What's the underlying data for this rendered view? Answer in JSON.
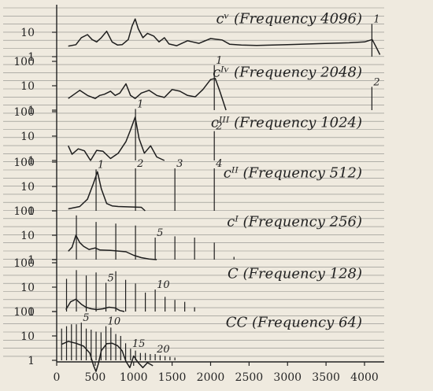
{
  "chart_data": {
    "type": "line",
    "x_axis": {
      "min": 0,
      "max": 4250,
      "ticks": [
        0,
        500,
        1000,
        1500,
        2000,
        2500,
        3000,
        3500,
        4000
      ]
    },
    "y_axis_scale": "log",
    "panels": [
      {
        "id": "cV",
        "title": "cᵛ (Frequency 4096)",
        "tick_labels": [
          "10",
          "1"
        ],
        "partials": [
          {
            "x": 4096,
            "label": "1",
            "amp": 22
          }
        ],
        "curve": [
          [
            150,
            2.7
          ],
          [
            250,
            3.1
          ],
          [
            320,
            6
          ],
          [
            400,
            8
          ],
          [
            460,
            5
          ],
          [
            520,
            4
          ],
          [
            580,
            6
          ],
          [
            650,
            11
          ],
          [
            720,
            4
          ],
          [
            790,
            3
          ],
          [
            850,
            3.1
          ],
          [
            930,
            5
          ],
          [
            980,
            18
          ],
          [
            1020,
            35
          ],
          [
            1060,
            14
          ],
          [
            1120,
            6
          ],
          [
            1180,
            9
          ],
          [
            1260,
            7
          ],
          [
            1330,
            4
          ],
          [
            1400,
            6
          ],
          [
            1460,
            3.3
          ],
          [
            1560,
            2.8
          ],
          [
            1700,
            4.5
          ],
          [
            1850,
            3.5
          ],
          [
            2000,
            5.5
          ],
          [
            2150,
            4.8
          ],
          [
            2250,
            3.2
          ],
          [
            2400,
            3
          ],
          [
            2600,
            2.9
          ],
          [
            3000,
            3.1
          ],
          [
            3400,
            3.4
          ],
          [
            3800,
            3.7
          ],
          [
            4000,
            4
          ],
          [
            4100,
            5
          ],
          [
            4150,
            2.5
          ],
          [
            4200,
            1.2
          ]
        ]
      },
      {
        "id": "cIV",
        "title": "cᴵᵛ (Frequency 2048)",
        "tick_labels": [
          "100",
          "10",
          "1"
        ],
        "partials": [
          {
            "x": 2048,
            "label": "1",
            "amp": 70
          },
          {
            "x": 4096,
            "label": "2",
            "amp": 9
          }
        ],
        "curve": [
          [
            150,
            3
          ],
          [
            300,
            6.5
          ],
          [
            400,
            4
          ],
          [
            500,
            3
          ],
          [
            560,
            4
          ],
          [
            620,
            4.5
          ],
          [
            700,
            6
          ],
          [
            760,
            4
          ],
          [
            820,
            5
          ],
          [
            900,
            12
          ],
          [
            960,
            4
          ],
          [
            1020,
            3
          ],
          [
            1100,
            5
          ],
          [
            1200,
            6.5
          ],
          [
            1300,
            4
          ],
          [
            1400,
            3.3
          ],
          [
            1500,
            7
          ],
          [
            1600,
            6
          ],
          [
            1700,
            4
          ],
          [
            1800,
            3.5
          ],
          [
            1900,
            7
          ],
          [
            2000,
            18
          ],
          [
            2060,
            20
          ],
          [
            2120,
            6
          ],
          [
            2200,
            1
          ]
        ]
      },
      {
        "id": "cIII",
        "title": "cᴵᴵᴵ (Frequency 1024)",
        "tick_labels": [
          "100",
          "10",
          "1"
        ],
        "partials": [
          {
            "x": 1024,
            "label": "1",
            "amp": 130
          },
          {
            "x": 2048,
            "label": "2",
            "amp": 16
          }
        ],
        "curve": [
          [
            150,
            4
          ],
          [
            200,
            1.8
          ],
          [
            280,
            3
          ],
          [
            360,
            2.5
          ],
          [
            440,
            1
          ],
          [
            520,
            2.6
          ],
          [
            600,
            2.4
          ],
          [
            700,
            1.2
          ],
          [
            800,
            2
          ],
          [
            900,
            6
          ],
          [
            960,
            18
          ],
          [
            1020,
            60
          ],
          [
            1070,
            8
          ],
          [
            1140,
            2
          ],
          [
            1220,
            4
          ],
          [
            1300,
            1.4
          ],
          [
            1400,
            1
          ]
        ]
      },
      {
        "id": "cII",
        "title": "cᴵᴵ (Frequency 512)",
        "tick_labels": [
          "100",
          "10",
          "1"
        ],
        "partials": [
          {
            "x": 512,
            "label": "1",
            "amp": 50
          },
          {
            "x": 1024,
            "label": "2",
            "amp": 55
          },
          {
            "x": 1536,
            "label": "3",
            "amp": 55
          },
          {
            "x": 2048,
            "label": "4",
            "amp": 55
          }
        ],
        "curve": [
          [
            150,
            1.2
          ],
          [
            300,
            1.5
          ],
          [
            400,
            3
          ],
          [
            480,
            14
          ],
          [
            530,
            40
          ],
          [
            580,
            8
          ],
          [
            650,
            2
          ],
          [
            720,
            1.6
          ],
          [
            800,
            1.5
          ],
          [
            1100,
            1.4
          ],
          [
            1150,
            1
          ]
        ]
      },
      {
        "id": "cI",
        "title": "cᴵ (Frequency 256)",
        "tick_labels": [
          "100",
          "10",
          "1"
        ],
        "partials": [
          {
            "x": 256,
            "label": "",
            "amp": 65
          },
          {
            "x": 512,
            "label": "",
            "amp": 35
          },
          {
            "x": 768,
            "label": "",
            "amp": 30
          },
          {
            "x": 1024,
            "label": "",
            "amp": 25
          },
          {
            "x": 1280,
            "label": "5",
            "amp": 8
          },
          {
            "x": 1536,
            "label": "",
            "amp": 9
          },
          {
            "x": 1792,
            "label": "",
            "amp": 8
          },
          {
            "x": 2048,
            "label": "",
            "amp": 5
          },
          {
            "x": 2304,
            "label": "",
            "amp": 1.3
          }
        ],
        "curve": [
          [
            150,
            2.2
          ],
          [
            200,
            3.2
          ],
          [
            250,
            10
          ],
          [
            300,
            5
          ],
          [
            350,
            3.5
          ],
          [
            420,
            2.6
          ],
          [
            500,
            3
          ],
          [
            560,
            2.5
          ],
          [
            700,
            2.4
          ],
          [
            900,
            2.1
          ],
          [
            1000,
            1.5
          ],
          [
            1100,
            1.2
          ],
          [
            1200,
            1.05
          ],
          [
            1300,
            1
          ]
        ]
      },
      {
        "id": "C",
        "title": "C (Frequency 128)",
        "tick_labels": [
          "100",
          "10",
          "1"
        ],
        "partials": [
          {
            "x": 128,
            "label": "",
            "amp": 22
          },
          {
            "x": 256,
            "label": "",
            "amp": 50
          },
          {
            "x": 384,
            "label": "",
            "amp": 30
          },
          {
            "x": 512,
            "label": "",
            "amp": 40
          },
          {
            "x": 640,
            "label": "5",
            "amp": 15
          },
          {
            "x": 768,
            "label": "",
            "amp": 45
          },
          {
            "x": 896,
            "label": "",
            "amp": 20
          },
          {
            "x": 1024,
            "label": "",
            "amp": 14
          },
          {
            "x": 1152,
            "label": "",
            "amp": 6
          },
          {
            "x": 1280,
            "label": "10",
            "amp": 8
          },
          {
            "x": 1408,
            "label": "",
            "amp": 4
          },
          {
            "x": 1536,
            "label": "",
            "amp": 3
          },
          {
            "x": 1664,
            "label": "",
            "amp": 2.5
          },
          {
            "x": 1792,
            "label": "",
            "amp": 1.5
          }
        ],
        "curve": [
          [
            120,
            1.2
          ],
          [
            180,
            2.5
          ],
          [
            250,
            3.2
          ],
          [
            320,
            2
          ],
          [
            380,
            1.5
          ],
          [
            450,
            1.3
          ],
          [
            520,
            1.2
          ],
          [
            600,
            1.3
          ],
          [
            680,
            1.5
          ],
          [
            760,
            1.4
          ],
          [
            820,
            1.1
          ],
          [
            880,
            1
          ]
        ]
      },
      {
        "id": "CC",
        "title": "CC (Frequency 64)",
        "tick_labels": [
          "100",
          "10",
          "1"
        ],
        "partials": [
          {
            "x": 64,
            "label": "",
            "amp": 20
          },
          {
            "x": 128,
            "label": "",
            "amp": 25
          },
          {
            "x": 192,
            "label": "",
            "amp": 30
          },
          {
            "x": 256,
            "label": "",
            "amp": 30
          },
          {
            "x": 320,
            "label": "5",
            "amp": 35
          },
          {
            "x": 384,
            "label": "",
            "amp": 20
          },
          {
            "x": 448,
            "label": "",
            "amp": 18
          },
          {
            "x": 512,
            "label": "",
            "amp": 15
          },
          {
            "x": 576,
            "label": "",
            "amp": 14
          },
          {
            "x": 640,
            "label": "10",
            "amp": 25
          },
          {
            "x": 704,
            "label": "",
            "amp": 22
          },
          {
            "x": 768,
            "label": "",
            "amp": 12
          },
          {
            "x": 832,
            "label": "",
            "amp": 10
          },
          {
            "x": 896,
            "label": "",
            "amp": 5
          },
          {
            "x": 960,
            "label": "15",
            "amp": 3
          },
          {
            "x": 1024,
            "label": "",
            "amp": 2.5
          },
          {
            "x": 1088,
            "label": "",
            "amp": 2
          },
          {
            "x": 1152,
            "label": "",
            "amp": 2
          },
          {
            "x": 1216,
            "label": "",
            "amp": 1.8
          },
          {
            "x": 1280,
            "label": "20",
            "amp": 1.8
          },
          {
            "x": 1344,
            "label": "",
            "amp": 1.6
          },
          {
            "x": 1408,
            "label": "",
            "amp": 1.5
          },
          {
            "x": 1472,
            "label": "",
            "amp": 1.4
          },
          {
            "x": 1536,
            "label": "",
            "amp": 1.3
          }
        ],
        "curve": [
          [
            60,
            4.5
          ],
          [
            150,
            6
          ],
          [
            250,
            5
          ],
          [
            350,
            3.8
          ],
          [
            430,
            2
          ],
          [
            480,
            0.6
          ],
          [
            510,
            0.35
          ],
          [
            540,
            0.7
          ],
          [
            580,
            2.5
          ],
          [
            650,
            4.8
          ],
          [
            720,
            5
          ],
          [
            790,
            4
          ],
          [
            850,
            2.5
          ],
          [
            900,
            0.9
          ],
          [
            950,
            0.5
          ],
          [
            1000,
            1.5
          ],
          [
            1060,
            0.8
          ],
          [
            1120,
            0.5
          ],
          [
            1180,
            0.8
          ],
          [
            1250,
            0.6
          ]
        ]
      }
    ]
  }
}
